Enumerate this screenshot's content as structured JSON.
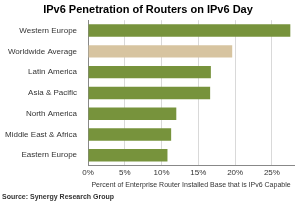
{
  "chart_data": {
    "type": "bar",
    "orientation": "horizontal",
    "title": "IPv6 Penetration of Routers on IPv6 Day",
    "x_label": "Percent of Enterprise Router Installed Base that is IPv6 Capable",
    "annotation": "Source: Synergy Research Group",
    "categories": [
      "Western Europe",
      "Worldwide Average",
      "Latin America",
      "Asia & Pacific",
      "North America",
      "Middle East & Africa",
      "Eastern Europe"
    ],
    "values": [
      27.5,
      19.6,
      16.7,
      16.6,
      12.0,
      11.3,
      10.8
    ],
    "colors": [
      "#77933c",
      "#d7c4a0",
      "#77933c",
      "#77933c",
      "#77933c",
      "#77933c",
      "#77933c"
    ],
    "xlim": [
      0,
      28
    ],
    "xticks": [
      {
        "value": 0,
        "label": "0%"
      },
      {
        "value": 5,
        "label": "5%"
      },
      {
        "value": 10,
        "label": "10%"
      },
      {
        "value": 15,
        "label": "15%"
      },
      {
        "value": 20,
        "label": "20%"
      },
      {
        "value": 25,
        "label": "25%"
      }
    ],
    "grid": true,
    "data_labels": false
  }
}
